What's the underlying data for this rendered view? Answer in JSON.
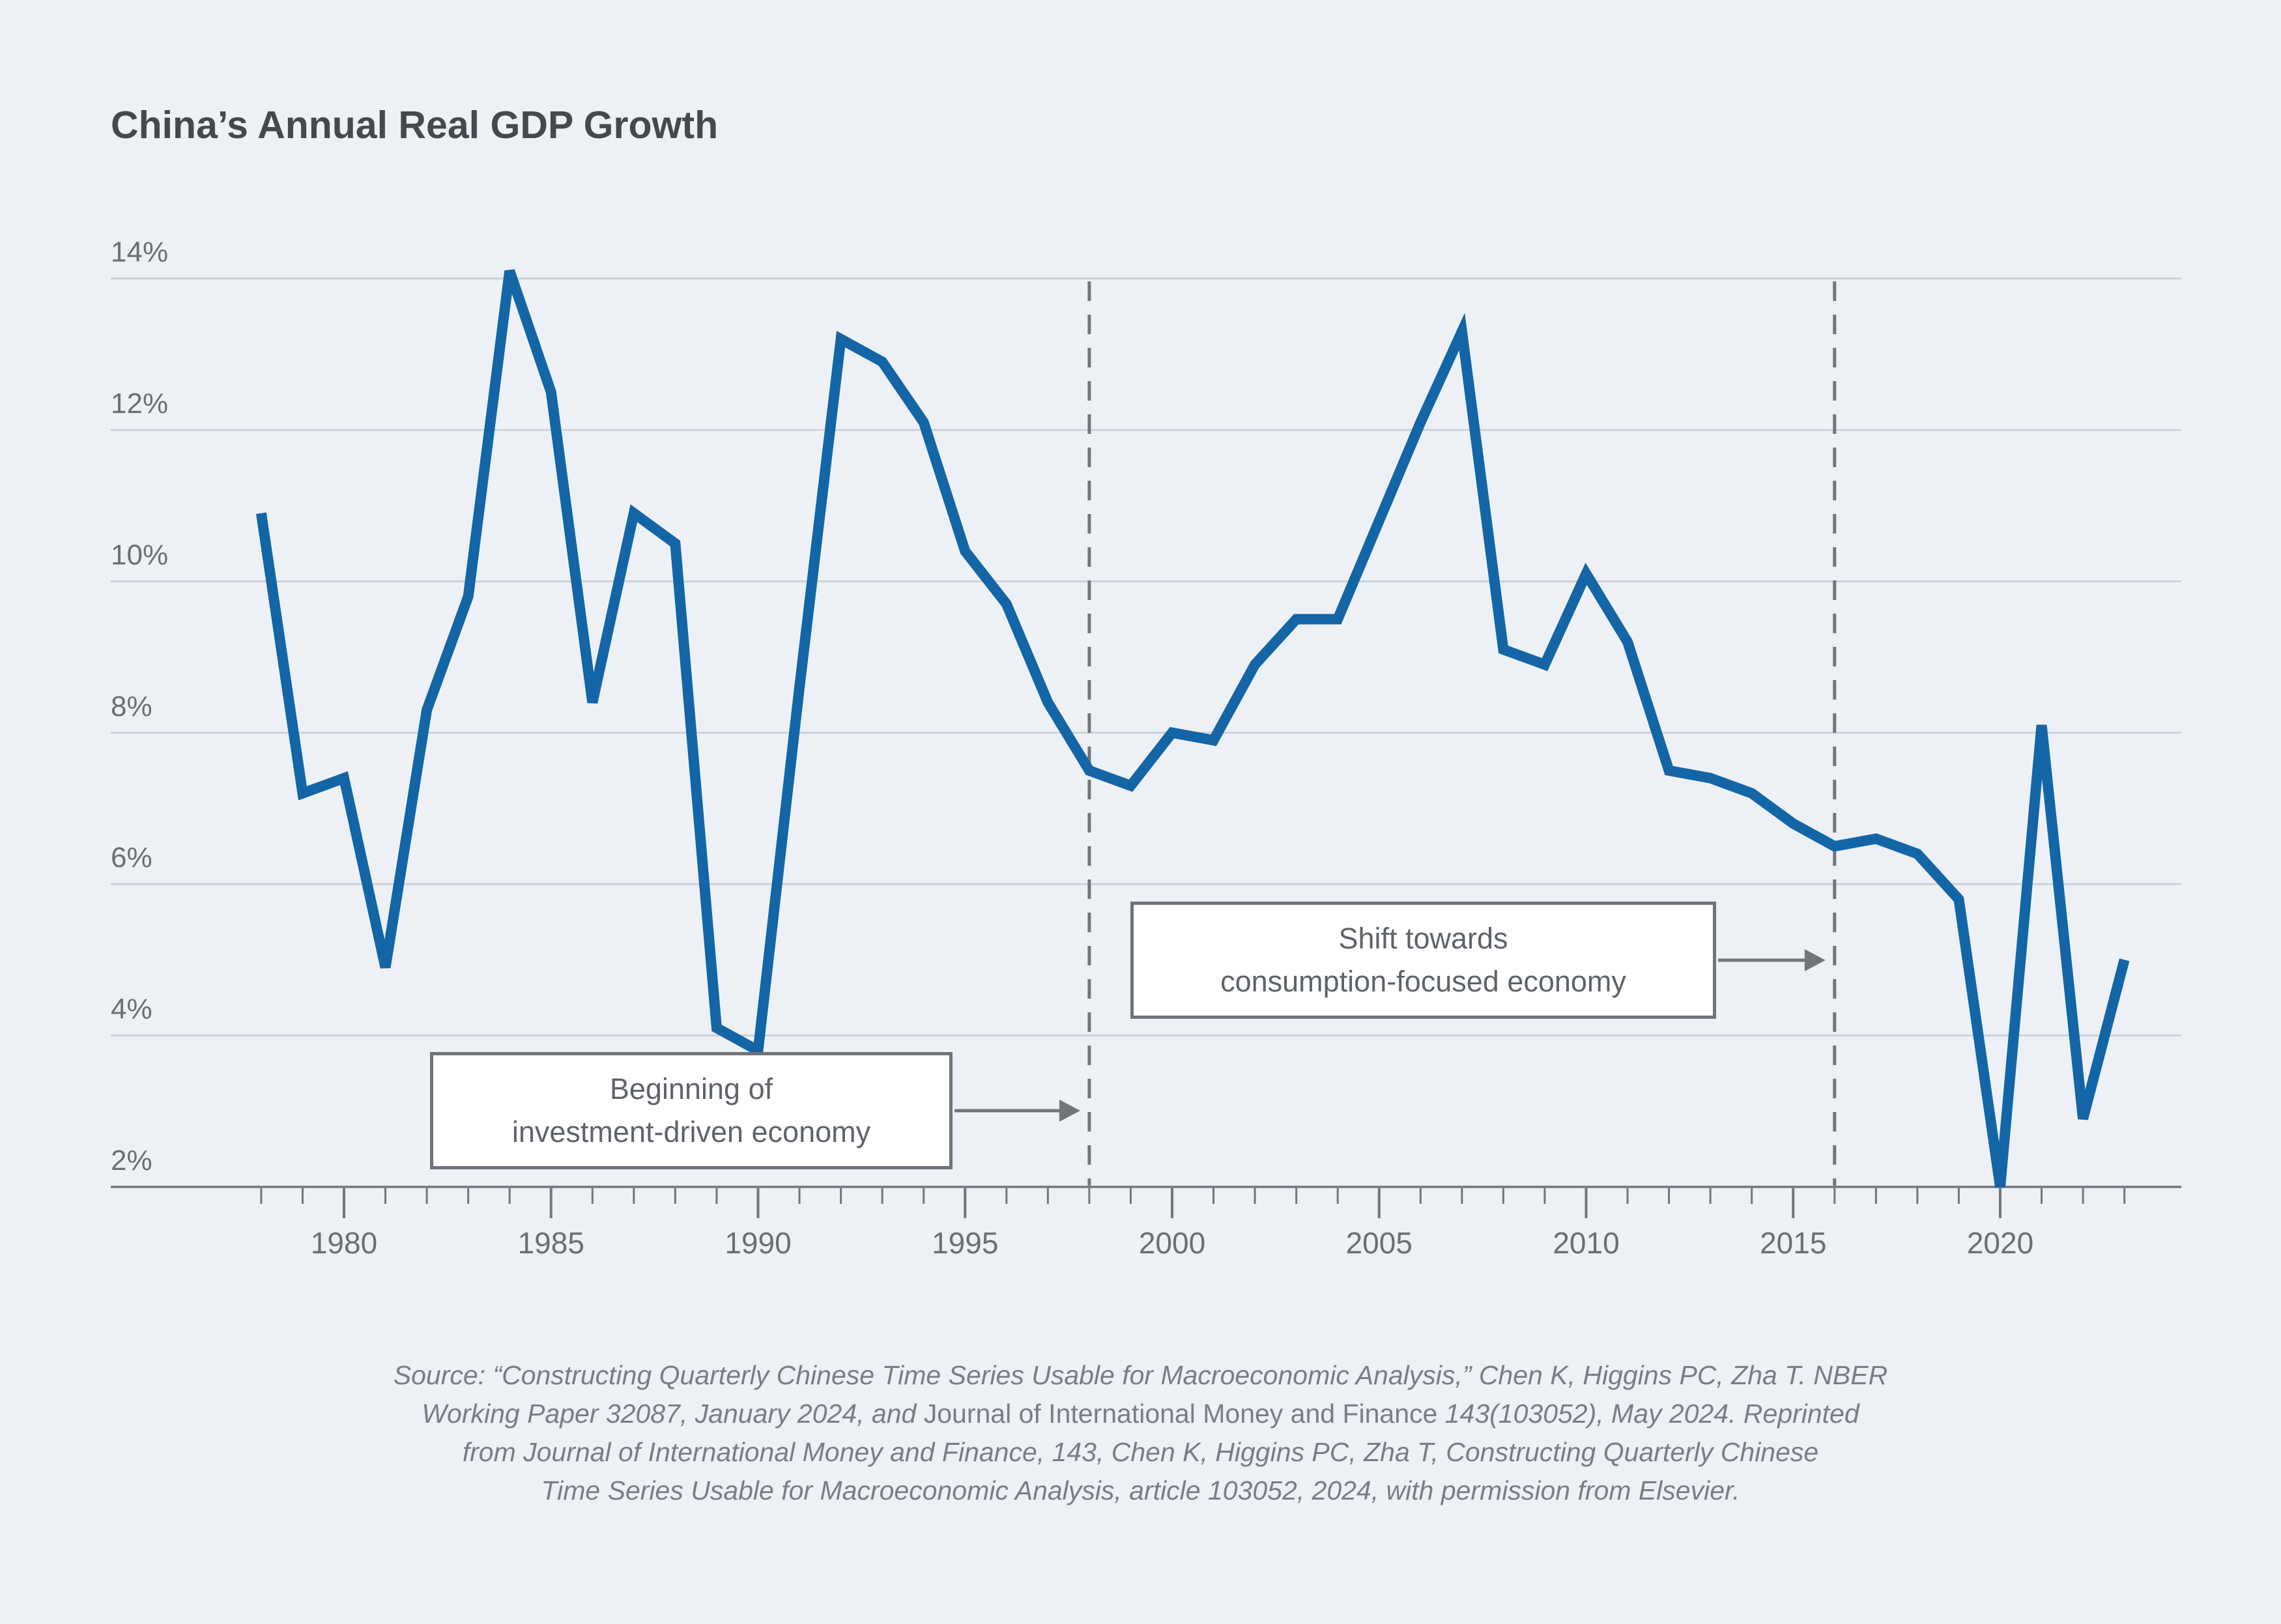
{
  "page": {
    "background": "#edf1f6"
  },
  "title": "China’s Annual Real GDP Growth",
  "chart_data": {
    "type": "line",
    "title": "China’s Annual Real GDP Growth",
    "series_name": "Annual real GDP growth",
    "x": [
      1978,
      1979,
      1980,
      1981,
      1982,
      1983,
      1984,
      1985,
      1986,
      1987,
      1988,
      1989,
      1990,
      1991,
      1992,
      1993,
      1994,
      1995,
      1996,
      1997,
      1998,
      1999,
      2000,
      2001,
      2002,
      2003,
      2004,
      2005,
      2006,
      2007,
      2008,
      2009,
      2010,
      2011,
      2012,
      2013,
      2014,
      2015,
      2016,
      2017,
      2018,
      2019,
      2020,
      2021,
      2022,
      2023
    ],
    "values": [
      10.9,
      7.2,
      7.4,
      4.9,
      8.3,
      9.8,
      14.1,
      12.5,
      8.4,
      10.9,
      10.5,
      4.1,
      3.8,
      8.6,
      13.2,
      12.9,
      12.1,
      10.4,
      9.7,
      8.4,
      7.5,
      7.3,
      8.0,
      7.9,
      8.9,
      9.5,
      9.5,
      10.8,
      12.1,
      13.3,
      9.1,
      8.9,
      10.1,
      9.2,
      7.5,
      7.4,
      7.2,
      6.8,
      6.5,
      6.6,
      6.4,
      5.8,
      2.0,
      8.1,
      2.9,
      5.0
    ],
    "ylim": [
      2,
      14
    ],
    "yticks": [
      14,
      12,
      10,
      8,
      6,
      4,
      2
    ],
    "ytick_suffix": "%",
    "xticks": [
      1980,
      1985,
      1990,
      1995,
      2000,
      2005,
      2010,
      2015,
      2020
    ],
    "xlabel": "",
    "ylabel": "",
    "grid": "horizontal",
    "legend": "none",
    "line_color": "#1365a6",
    "grid_color": "#c9ced4",
    "axis_color": "#71767b",
    "tick_label_color": "#6a6f73",
    "annotations": [
      {
        "line1": "Beginning of",
        "line2": "investment-driven economy",
        "target_year": 1998
      },
      {
        "line1": "Shift towards",
        "line2": "consumption-focused economy",
        "target_year": 2016
      }
    ]
  },
  "source": {
    "line1": "Source: “Constructing Quarterly Chinese Time Series Usable for Macroeconomic Analysis,” Chen K, Higgins PC, Zha T. NBER",
    "line2a": "Working Paper 32087, January 2024, and ",
    "line2b": "Journal of International Money and Finance",
    "line2c": " 143(103052), May 2024. Reprinted",
    "line3": "from Journal of International Money and Finance, 143, Chen K, Higgins PC, Zha T, Constructing Quarterly Chinese",
    "line4": "Time Series Usable for Macroeconomic Analysis, article 103052, 2024, with permission from Elsevier."
  }
}
